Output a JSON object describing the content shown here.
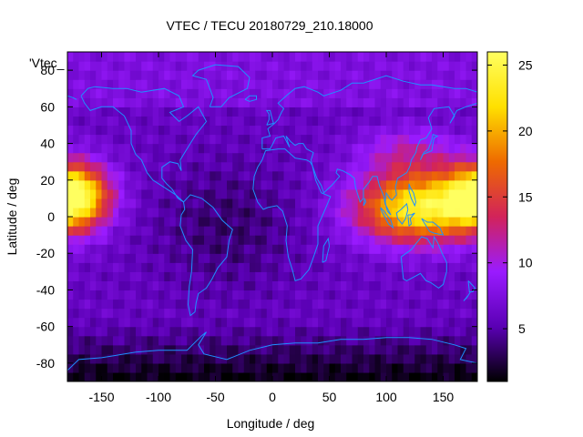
{
  "chart_data": {
    "type": "heatmap",
    "title": "VTEC / TECU 20180729_210.18000",
    "xlabel": "Longitude / deg",
    "ylabel": "Latitude / deg",
    "key_label": "'Vtec_",
    "xlim": [
      -180,
      180
    ],
    "ylim": [
      -90,
      90
    ],
    "x_ticks": [
      -150,
      -100,
      -50,
      0,
      50,
      100,
      150
    ],
    "y_ticks": [
      -80,
      -60,
      -40,
      -20,
      0,
      20,
      40,
      60,
      80
    ],
    "colorbar": {
      "min": 1,
      "max": 26,
      "ticks": [
        5,
        10,
        15,
        20,
        25
      ],
      "palette": [
        "#000000",
        "#5a00b4",
        "#9a1bff",
        "#d2235a",
        "#ee6a00",
        "#ffe000",
        "#ffff60"
      ]
    },
    "overlay": "coastlines",
    "overlay_color": "#1e90ff",
    "grid_resolution_deg": [
      5,
      5
    ]
  }
}
